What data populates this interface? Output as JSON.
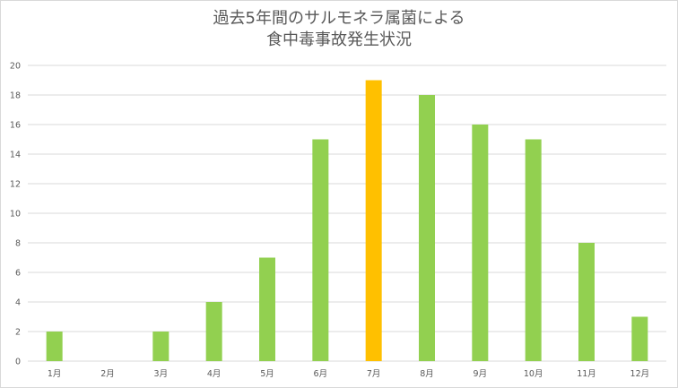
{
  "chart_data": {
    "type": "bar",
    "title_lines": [
      "過去5年間のサルモネラ属菌による",
      "食中毒事故発生状況"
    ],
    "categories": [
      "1月",
      "2月",
      "3月",
      "4月",
      "5月",
      "6月",
      "7月",
      "8月",
      "9月",
      "10月",
      "11月",
      "12月"
    ],
    "values": [
      2,
      0,
      2,
      4,
      7,
      15,
      19,
      18,
      16,
      15,
      8,
      3
    ],
    "highlight_category": "7月",
    "ylim": [
      0,
      20
    ],
    "yticks": [
      0,
      2,
      4,
      6,
      8,
      10,
      12,
      14,
      16,
      18,
      20
    ],
    "grid": true,
    "legend": "none",
    "colors": {
      "bar": "#92d050",
      "highlight": "#ffc000",
      "grid": "#d9d9d9",
      "text": "#595959"
    }
  }
}
